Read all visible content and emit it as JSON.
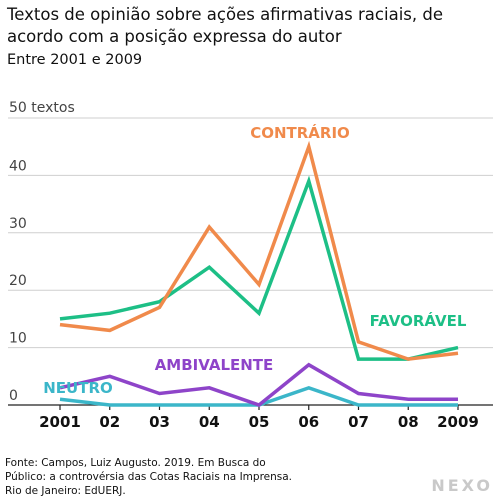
{
  "header": {
    "title": "Textos de opinião sobre ações afirmativas raciais, de acordo com a posição expressa do autor",
    "subtitle": "Entre 2001 e 2009"
  },
  "footer": {
    "source": "Fonte: Campos, Luiz Augusto. 2019. Em Busca do Público: a controvérsia das Cotas Raciais na Imprensa. Rio de Janeiro: EdUERJ.",
    "logo": "NEXO"
  },
  "chart_data": {
    "type": "line",
    "categories": [
      "2001",
      "02",
      "03",
      "04",
      "05",
      "06",
      "07",
      "08",
      "2009"
    ],
    "ylabel": "50 textos",
    "yticks": [
      0,
      10,
      20,
      30,
      40
    ],
    "ylim": [
      0,
      50
    ],
    "grid": true,
    "series": [
      {
        "name": "CONTRÁRIO",
        "color": "#f08a4b",
        "values": [
          14,
          13,
          17,
          31,
          21,
          45,
          11,
          8,
          9
        ]
      },
      {
        "name": "FAVORÁVEL",
        "color": "#1dbf86",
        "values": [
          15,
          16,
          18,
          24,
          16,
          39,
          8,
          8,
          10
        ]
      },
      {
        "name": "AMBIVALENTE",
        "color": "#8e44c9",
        "values": [
          3,
          5,
          2,
          3,
          0,
          7,
          2,
          1,
          1
        ]
      },
      {
        "name": "NEUTRO",
        "color": "#3bb6c9",
        "values": [
          1,
          0,
          0,
          0,
          0,
          3,
          0,
          0,
          0
        ]
      }
    ]
  }
}
